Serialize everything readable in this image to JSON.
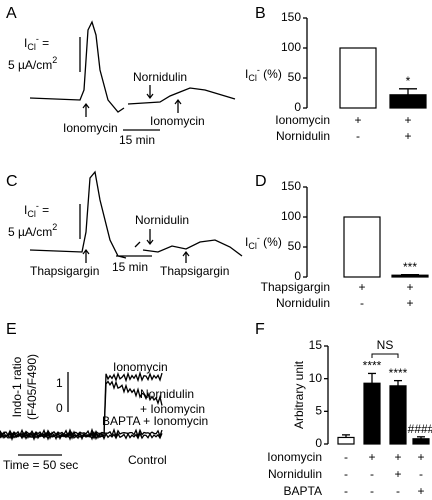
{
  "chart_data": [
    {
      "type": "trace",
      "panel": "A",
      "current_label": [
        "I",
        "Cl",
        "-",
        " ="
      ],
      "scale_label": [
        "5 µA/cm",
        "2"
      ],
      "annotations": [
        "Ionomycin",
        "Nornidulin",
        "Ionomycin"
      ],
      "time_scale": "15 min"
    },
    {
      "type": "bar",
      "panel": "B",
      "ylabel": [
        "I",
        "Cl",
        "-",
        " (%)"
      ],
      "values": [
        100,
        22
      ],
      "errors": [
        null,
        10
      ],
      "colors": [
        "#ffffff",
        "#000000"
      ],
      "annotations": [
        null,
        "*"
      ],
      "ylim": [
        0,
        150
      ],
      "yticks": [
        0,
        50,
        100,
        150
      ],
      "conditions": [
        {
          "name": "Ionomycin",
          "values": [
            "+",
            "+"
          ]
        },
        {
          "name": "Nornidulin",
          "values": [
            "-",
            "+"
          ]
        }
      ]
    },
    {
      "type": "trace",
      "panel": "C",
      "current_label": [
        "I",
        "Cl",
        "-",
        " ="
      ],
      "scale_label": [
        "5 µA/cm",
        "2"
      ],
      "annotations": [
        "Thapsigargin",
        "Nornidulin",
        "Thapsigargin"
      ],
      "time_scale": "15 min"
    },
    {
      "type": "bar",
      "panel": "D",
      "ylabel": [
        "I",
        "Cl",
        "-",
        " (%)"
      ],
      "values": [
        100,
        3
      ],
      "errors": [
        null,
        1
      ],
      "colors": [
        "#ffffff",
        "#000000"
      ],
      "annotations": [
        null,
        "***"
      ],
      "ylim": [
        0,
        150
      ],
      "yticks": [
        0,
        50,
        100,
        150
      ],
      "conditions": [
        {
          "name": "Thapsigargin",
          "values": [
            "+",
            "+"
          ]
        },
        {
          "name": "Nornidulin",
          "values": [
            "-",
            "+"
          ]
        }
      ]
    },
    {
      "type": "trace",
      "panel": "E",
      "ylabel": [
        "Indo-1 ratio",
        "(F405/F490)"
      ],
      "scale_ticks": [
        "1",
        "0"
      ],
      "annotations": [
        "Ionomycin",
        "Nornidulin",
        "+ Ionomycin",
        "BAPTA + Ionomycin",
        "Control"
      ],
      "time_scale": "Time = 50 sec"
    },
    {
      "type": "bar",
      "panel": "F",
      "ylabel": "Arbitrary unit",
      "values": [
        1.0,
        9.3,
        8.9,
        0.8
      ],
      "errors": [
        0.4,
        1.5,
        0.8,
        0.3
      ],
      "colors": [
        "#ffffff",
        "#000000",
        "#000000",
        "#000000"
      ],
      "annotations": [
        null,
        "****",
        "****",
        "####"
      ],
      "bracket_label": "NS",
      "ylim": [
        0,
        15
      ],
      "yticks": [
        0,
        5,
        10,
        15
      ],
      "conditions": [
        {
          "name": "Ionomycin",
          "values": [
            "-",
            "+",
            "+",
            "+"
          ]
        },
        {
          "name": "Nornidulin",
          "values": [
            "-",
            "-",
            "+",
            "-"
          ]
        },
        {
          "name": "BAPTA",
          "values": [
            "-",
            "-",
            "-",
            "+"
          ]
        }
      ]
    }
  ]
}
